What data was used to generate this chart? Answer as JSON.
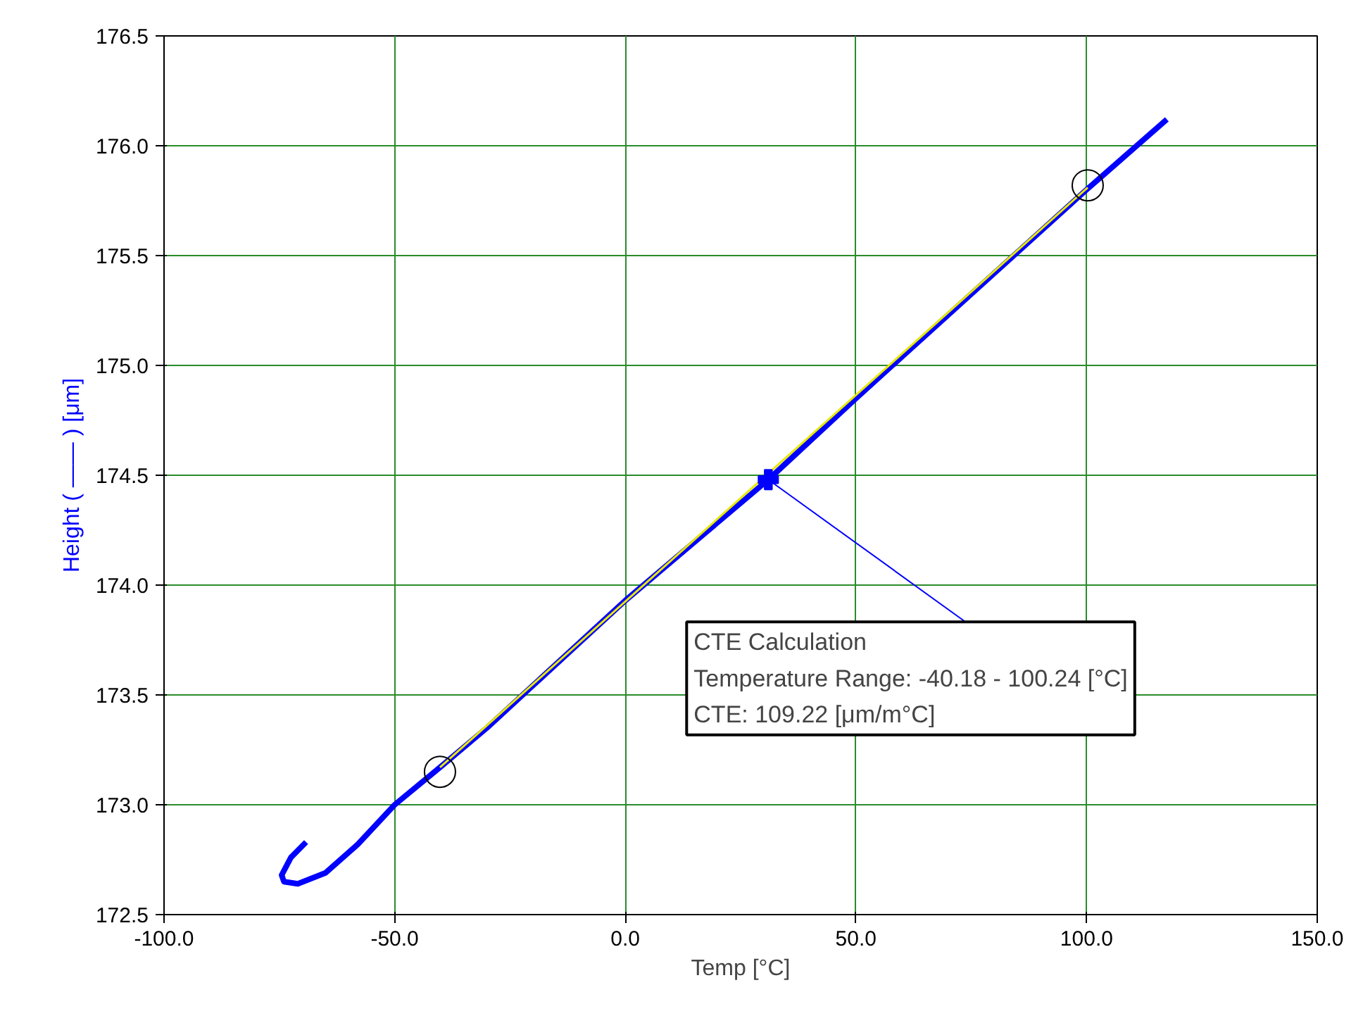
{
  "chart_data": {
    "type": "line",
    "xlabel": "Temp [°C]",
    "ylabel": "Height ( —— ) [μm]",
    "xlim": [
      -100,
      150
    ],
    "ylim": [
      172.5,
      176.5
    ],
    "xticks": [
      {
        "value": -100,
        "label": "-100.0"
      },
      {
        "value": -50,
        "label": "-50.0"
      },
      {
        "value": 0,
        "label": "0.0"
      },
      {
        "value": 50,
        "label": "50.0"
      },
      {
        "value": 100,
        "label": "100.0"
      },
      {
        "value": 150,
        "label": "150.0"
      }
    ],
    "yticks": [
      172.5,
      {
        "value": 173,
        "label": "173.0"
      },
      173.5,
      {
        "value": 174,
        "label": "174.0"
      },
      174.5,
      {
        "value": 175,
        "label": "175.0"
      },
      175.5,
      {
        "value": 176,
        "label": "176.0"
      },
      176.5
    ],
    "grid": true,
    "line_style": "solid",
    "series": [
      {
        "color": "#0000ff",
        "x": [
          -69.2,
          -72.5,
          -74.5,
          -74,
          -71,
          -65,
          -58,
          -50,
          -40.18,
          -30,
          0,
          31,
          50,
          100,
          117.4
        ],
        "values": [
          172.83,
          172.76,
          172.68,
          172.65,
          172.64,
          172.69,
          172.82,
          173.0,
          173.17,
          173.35,
          173.93,
          174.48,
          174.85,
          175.8,
          176.12
        ]
      },
      {
        "type": "line",
        "color": "#e8e800",
        "x": [
          -40.18,
          100.24
        ],
        "values": [
          173.17,
          175.81
        ]
      },
      {
        "type": "scatter",
        "marker": "circle",
        "color": "#000000",
        "x": [
          -40.18,
          100.24
        ],
        "values": [
          173.15,
          175.82
        ]
      },
      {
        "type": "scatter",
        "marker": "cross",
        "color": "#0000ff",
        "x": [
          31
        ],
        "values": [
          174.48
        ]
      }
    ],
    "annotations": [
      {
        "text": "CTE Calculation\nTemperature Range: -40.18 - 100.24 [°C]\nCTE: 109.22 [μm/m°C]",
        "x": 31,
        "y": 174.48
      }
    ]
  }
}
